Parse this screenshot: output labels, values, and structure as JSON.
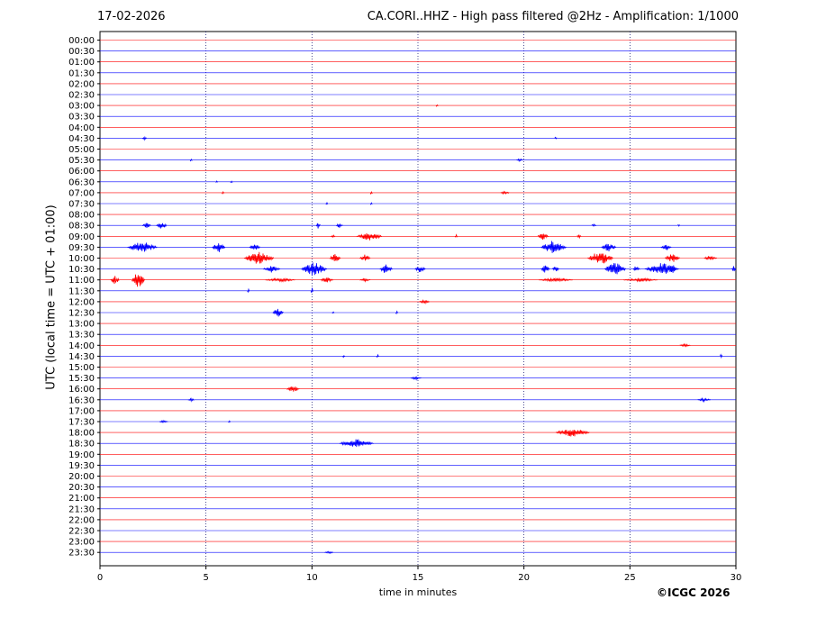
{
  "header": {
    "date": "17-02-2026",
    "title": "CA.CORI..HHZ - High pass filtered @2Hz - Amplification: 1/1000"
  },
  "footer": {
    "copyright": "©ICGC 2026"
  },
  "chart_data": {
    "type": "line",
    "title": "CA.CORI..HHZ - High pass filtered @2Hz - Amplification: 1/1000",
    "xlabel": "time in minutes",
    "ylabel": "UTC (local time = UTC + 01:00)",
    "xlim": [
      0,
      30
    ],
    "x_ticks": [
      0,
      5,
      10,
      15,
      20,
      25,
      30
    ],
    "grid": "vertical dotted lines every 5 minutes",
    "series_colors": [
      "#ff0000",
      "#0000ff"
    ],
    "rows": [
      {
        "label": "00:00",
        "events": []
      },
      {
        "label": "00:30",
        "events": []
      },
      {
        "label": "01:00",
        "events": []
      },
      {
        "label": "01:30",
        "events": []
      },
      {
        "label": "02:00",
        "events": []
      },
      {
        "label": "02:30",
        "events": []
      },
      {
        "label": "03:00",
        "events": [
          [
            15.9,
            0.1,
            2
          ]
        ]
      },
      {
        "label": "03:30",
        "events": []
      },
      {
        "label": "04:00",
        "events": []
      },
      {
        "label": "04:30",
        "events": [
          [
            2.1,
            0.2,
            2
          ],
          [
            21.5,
            0.1,
            2
          ]
        ]
      },
      {
        "label": "05:00",
        "events": []
      },
      {
        "label": "05:30",
        "events": [
          [
            4.3,
            0.1,
            2
          ],
          [
            19.8,
            0.3,
            1.5
          ]
        ]
      },
      {
        "label": "06:00",
        "events": []
      },
      {
        "label": "06:30",
        "events": [
          [
            6.2,
            0.1,
            2
          ],
          [
            5.5,
            0.1,
            1.5
          ]
        ]
      },
      {
        "label": "07:00",
        "events": [
          [
            5.8,
            0.1,
            2
          ],
          [
            12.8,
            0.1,
            2
          ],
          [
            19.1,
            0.4,
            2
          ]
        ]
      },
      {
        "label": "07:30",
        "events": [
          [
            10.7,
            0.1,
            2
          ],
          [
            12.8,
            0.1,
            1.5
          ]
        ]
      },
      {
        "label": "08:00",
        "events": []
      },
      {
        "label": "08:30",
        "events": [
          [
            2.2,
            0.4,
            3
          ],
          [
            2.9,
            0.5,
            4
          ],
          [
            10.3,
            0.2,
            4
          ],
          [
            11.3,
            0.3,
            3
          ],
          [
            23.3,
            0.2,
            2
          ],
          [
            27.3,
            0.1,
            2
          ]
        ]
      },
      {
        "label": "09:00",
        "events": [
          [
            12.7,
            1.2,
            5
          ],
          [
            20.9,
            0.5,
            4
          ],
          [
            22.6,
            0.2,
            2
          ],
          [
            16.8,
            0.1,
            2
          ],
          [
            11.0,
            0.2,
            2
          ]
        ]
      },
      {
        "label": "09:30",
        "events": [
          [
            2.0,
            1.4,
            7
          ],
          [
            5.6,
            0.6,
            6
          ],
          [
            7.3,
            0.5,
            4
          ],
          [
            21.4,
            1.2,
            8
          ],
          [
            24.0,
            0.7,
            5
          ],
          [
            26.7,
            0.5,
            4
          ]
        ]
      },
      {
        "label": "10:00",
        "events": [
          [
            7.5,
            1.4,
            8
          ],
          [
            11.1,
            0.5,
            5
          ],
          [
            12.5,
            0.5,
            4
          ],
          [
            23.6,
            1.2,
            8
          ],
          [
            27.0,
            0.7,
            5
          ],
          [
            28.8,
            0.6,
            3
          ]
        ]
      },
      {
        "label": "10:30",
        "events": [
          [
            8.1,
            0.8,
            4
          ],
          [
            10.1,
            1.2,
            8
          ],
          [
            13.5,
            0.6,
            6
          ],
          [
            15.1,
            0.5,
            4
          ],
          [
            21.0,
            0.4,
            5
          ],
          [
            21.5,
            0.3,
            4
          ],
          [
            24.3,
            1.0,
            8
          ],
          [
            25.3,
            0.3,
            4
          ],
          [
            26.5,
            1.6,
            7
          ],
          [
            27.0,
            0.3,
            8
          ],
          [
            29.9,
            0.2,
            4
          ]
        ]
      },
      {
        "label": "11:00",
        "events": [
          [
            0.7,
            0.4,
            5
          ],
          [
            1.8,
            0.6,
            10
          ],
          [
            8.5,
            1.4,
            2
          ],
          [
            10.7,
            0.6,
            3
          ],
          [
            12.5,
            0.5,
            2
          ],
          [
            21.5,
            1.6,
            2
          ],
          [
            25.5,
            1.6,
            2
          ]
        ]
      },
      {
        "label": "11:30",
        "events": [
          [
            7.0,
            0.1,
            3
          ],
          [
            10.0,
            0.1,
            4
          ]
        ]
      },
      {
        "label": "12:00",
        "events": [
          [
            15.3,
            0.5,
            2
          ]
        ]
      },
      {
        "label": "12:30",
        "events": [
          [
            8.4,
            0.5,
            5
          ],
          [
            14.0,
            0.1,
            2
          ],
          [
            11.0,
            0.1,
            2
          ]
        ]
      },
      {
        "label": "13:00",
        "events": []
      },
      {
        "label": "13:30",
        "events": []
      },
      {
        "label": "14:00",
        "events": [
          [
            27.6,
            0.5,
            1.5
          ]
        ]
      },
      {
        "label": "14:30",
        "events": [
          [
            11.5,
            0.1,
            2
          ],
          [
            13.1,
            0.1,
            2
          ],
          [
            29.3,
            0.1,
            3
          ]
        ]
      },
      {
        "label": "15:00",
        "events": []
      },
      {
        "label": "15:30",
        "events": [
          [
            14.9,
            0.5,
            2
          ]
        ]
      },
      {
        "label": "16:00",
        "events": [
          [
            9.1,
            0.6,
            4
          ]
        ]
      },
      {
        "label": "16:30",
        "events": [
          [
            4.3,
            0.3,
            1.5
          ],
          [
            28.5,
            0.6,
            2
          ]
        ]
      },
      {
        "label": "17:00",
        "events": []
      },
      {
        "label": "17:30",
        "events": [
          [
            3.0,
            0.4,
            1.5
          ],
          [
            6.1,
            0.1,
            2
          ]
        ]
      },
      {
        "label": "18:00",
        "events": [
          [
            22.3,
            1.6,
            5
          ]
        ]
      },
      {
        "label": "18:30",
        "events": [
          [
            12.1,
            1.6,
            5
          ]
        ]
      },
      {
        "label": "19:00",
        "events": []
      },
      {
        "label": "19:30",
        "events": []
      },
      {
        "label": "20:00",
        "events": []
      },
      {
        "label": "20:30",
        "events": []
      },
      {
        "label": "21:00",
        "events": []
      },
      {
        "label": "21:30",
        "events": []
      },
      {
        "label": "22:00",
        "events": []
      },
      {
        "label": "22:30",
        "events": []
      },
      {
        "label": "23:00",
        "events": []
      },
      {
        "label": "23:30",
        "events": [
          [
            10.8,
            0.4,
            1.5
          ]
        ]
      }
    ]
  }
}
